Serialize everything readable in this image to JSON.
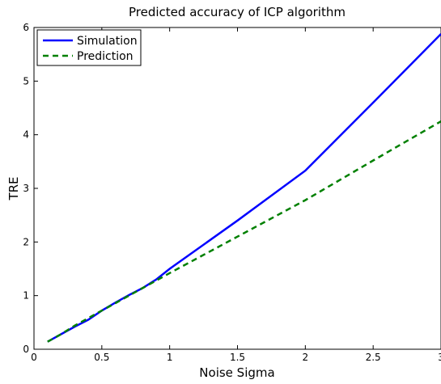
{
  "chart_data": {
    "type": "line",
    "title": "Predicted accuracy of ICP algorithm",
    "xlabel": "Noise Sigma",
    "ylabel": "TRE",
    "xlim": [
      0,
      3
    ],
    "ylim": [
      0,
      6
    ],
    "xticks": [
      0,
      0.5,
      1,
      1.5,
      2,
      2.5,
      3
    ],
    "xtick_labels": [
      "0",
      "0.5",
      "1",
      "1.5",
      "2",
      "2.5",
      "3"
    ],
    "yticks": [
      0,
      1,
      2,
      3,
      4,
      5,
      6
    ],
    "ytick_labels": [
      "0",
      "1",
      "2",
      "3",
      "4",
      "5",
      "6"
    ],
    "grid": false,
    "legend_position": "top-left",
    "series": [
      {
        "name": "Simulation",
        "color": "#0000ff",
        "style": "solid",
        "x": [
          0.1,
          0.2,
          0.3,
          0.4,
          0.5,
          0.6,
          0.7,
          0.8,
          0.9,
          1.0,
          1.5,
          2.0,
          2.5,
          3.0
        ],
        "y": [
          0.14,
          0.28,
          0.42,
          0.55,
          0.72,
          0.87,
          1.01,
          1.14,
          1.3,
          1.5,
          2.4,
          3.33,
          4.6,
          5.88
        ]
      },
      {
        "name": "Prediction",
        "color": "#008000",
        "style": "dashed",
        "x": [
          0.1,
          0.2,
          0.3,
          0.4,
          0.5,
          0.6,
          0.7,
          0.8,
          0.9,
          1.0,
          1.5,
          2.0,
          2.5,
          3.0
        ],
        "y": [
          0.14,
          0.28,
          0.44,
          0.58,
          0.72,
          0.86,
          1.0,
          1.14,
          1.28,
          1.42,
          2.1,
          2.78,
          3.52,
          4.25
        ]
      }
    ]
  }
}
